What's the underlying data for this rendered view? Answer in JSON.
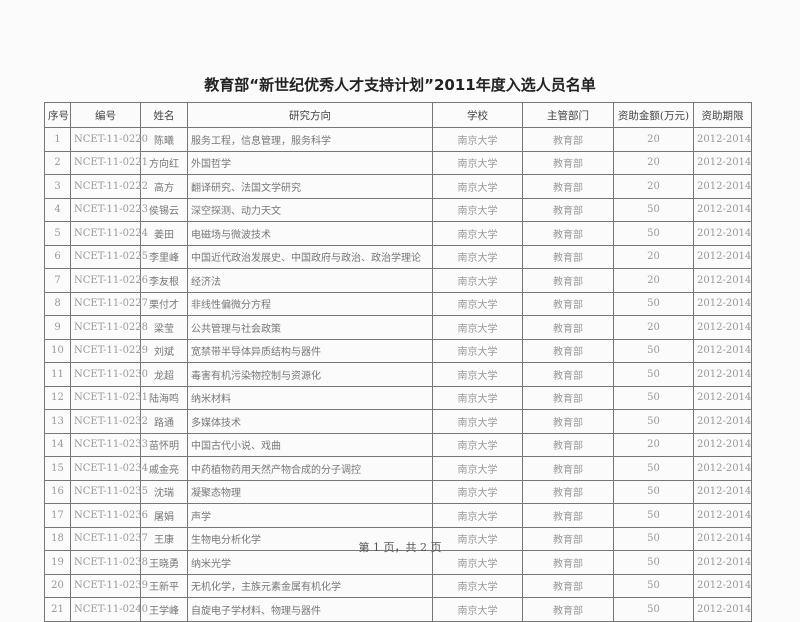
{
  "title": "教育部“新世纪优秀人才支持计划”2011年度入选人员名单",
  "columns": [
    "序号",
    "编号",
    "姓名",
    "研究方向",
    "学校",
    "主管部门",
    "资助金额(万元)",
    "资助期限"
  ],
  "rows": [
    [
      "1",
      "NCET-11-0220",
      "陈曦",
      "服务工程，信息管理，服务科学",
      "南京大学",
      "教育部",
      "20",
      "2012-2014"
    ],
    [
      "2",
      "NCET-11-0221",
      "方向红",
      "外国哲学",
      "南京大学",
      "教育部",
      "20",
      "2012-2014"
    ],
    [
      "3",
      "NCET-11-0222",
      "高方",
      "翻译研究、法国文学研究",
      "南京大学",
      "教育部",
      "20",
      "2012-2014"
    ],
    [
      "4",
      "NCET-11-0223",
      "侯锡云",
      "深空探测、动力天文",
      "南京大学",
      "教育部",
      "50",
      "2012-2014"
    ],
    [
      "5",
      "NCET-11-0224",
      "姜田",
      "电磁场与微波技术",
      "南京大学",
      "教育部",
      "50",
      "2012-2014"
    ],
    [
      "6",
      "NCET-11-0225",
      "李里峰",
      "中国近代政治发展史、中国政府与政治、政治学理论",
      "南京大学",
      "教育部",
      "20",
      "2012-2014"
    ],
    [
      "7",
      "NCET-11-0226",
      "李友根",
      "经济法",
      "南京大学",
      "教育部",
      "20",
      "2012-2014"
    ],
    [
      "8",
      "NCET-11-0227",
      "栗付才",
      "非线性偏微分方程",
      "南京大学",
      "教育部",
      "50",
      "2012-2014"
    ],
    [
      "9",
      "NCET-11-0228",
      "梁莹",
      "公共管理与社会政策",
      "南京大学",
      "教育部",
      "20",
      "2012-2014"
    ],
    [
      "10",
      "NCET-11-0229",
      "刘斌",
      "宽禁带半导体异质结构与器件",
      "南京大学",
      "教育部",
      "50",
      "2012-2014"
    ],
    [
      "11",
      "NCET-11-0230",
      "龙超",
      "毒害有机污染物控制与资源化",
      "南京大学",
      "教育部",
      "50",
      "2012-2014"
    ],
    [
      "12",
      "NCET-11-0231",
      "陆海鸣",
      "纳米材料",
      "南京大学",
      "教育部",
      "50",
      "2012-2014"
    ],
    [
      "13",
      "NCET-11-0232",
      "路通",
      "多媒体技术",
      "南京大学",
      "教育部",
      "50",
      "2012-2014"
    ],
    [
      "14",
      "NCET-11-0233",
      "苗怀明",
      "中国古代小说、戏曲",
      "南京大学",
      "教育部",
      "20",
      "2012-2014"
    ],
    [
      "15",
      "NCET-11-0234",
      "戚金亮",
      "中药植物药用天然产物合成的分子调控",
      "南京大学",
      "教育部",
      "50",
      "2012-2014"
    ],
    [
      "16",
      "NCET-11-0235",
      "沈瑞",
      "凝聚态物理",
      "南京大学",
      "教育部",
      "50",
      "2012-2014"
    ],
    [
      "17",
      "NCET-11-0236",
      "屠娟",
      "声学",
      "南京大学",
      "教育部",
      "50",
      "2012-2014"
    ],
    [
      "18",
      "NCET-11-0237",
      "王康",
      "生物电分析化学",
      "南京大学",
      "教育部",
      "50",
      "2012-2014"
    ],
    [
      "19",
      "NCET-11-0238",
      "王晓勇",
      "纳米光学",
      "南京大学",
      "教育部",
      "50",
      "2012-2014"
    ],
    [
      "20",
      "NCET-11-0239",
      "王新平",
      "无机化学，主族元素金属有机化学",
      "南京大学",
      "教育部",
      "50",
      "2012-2014"
    ],
    [
      "21",
      "NCET-11-0240",
      "王学峰",
      "自旋电子学材料、物理与器件",
      "南京大学",
      "教育部",
      "50",
      "2012-2014"
    ]
  ],
  "footer": "第 1 页，共 2 页"
}
